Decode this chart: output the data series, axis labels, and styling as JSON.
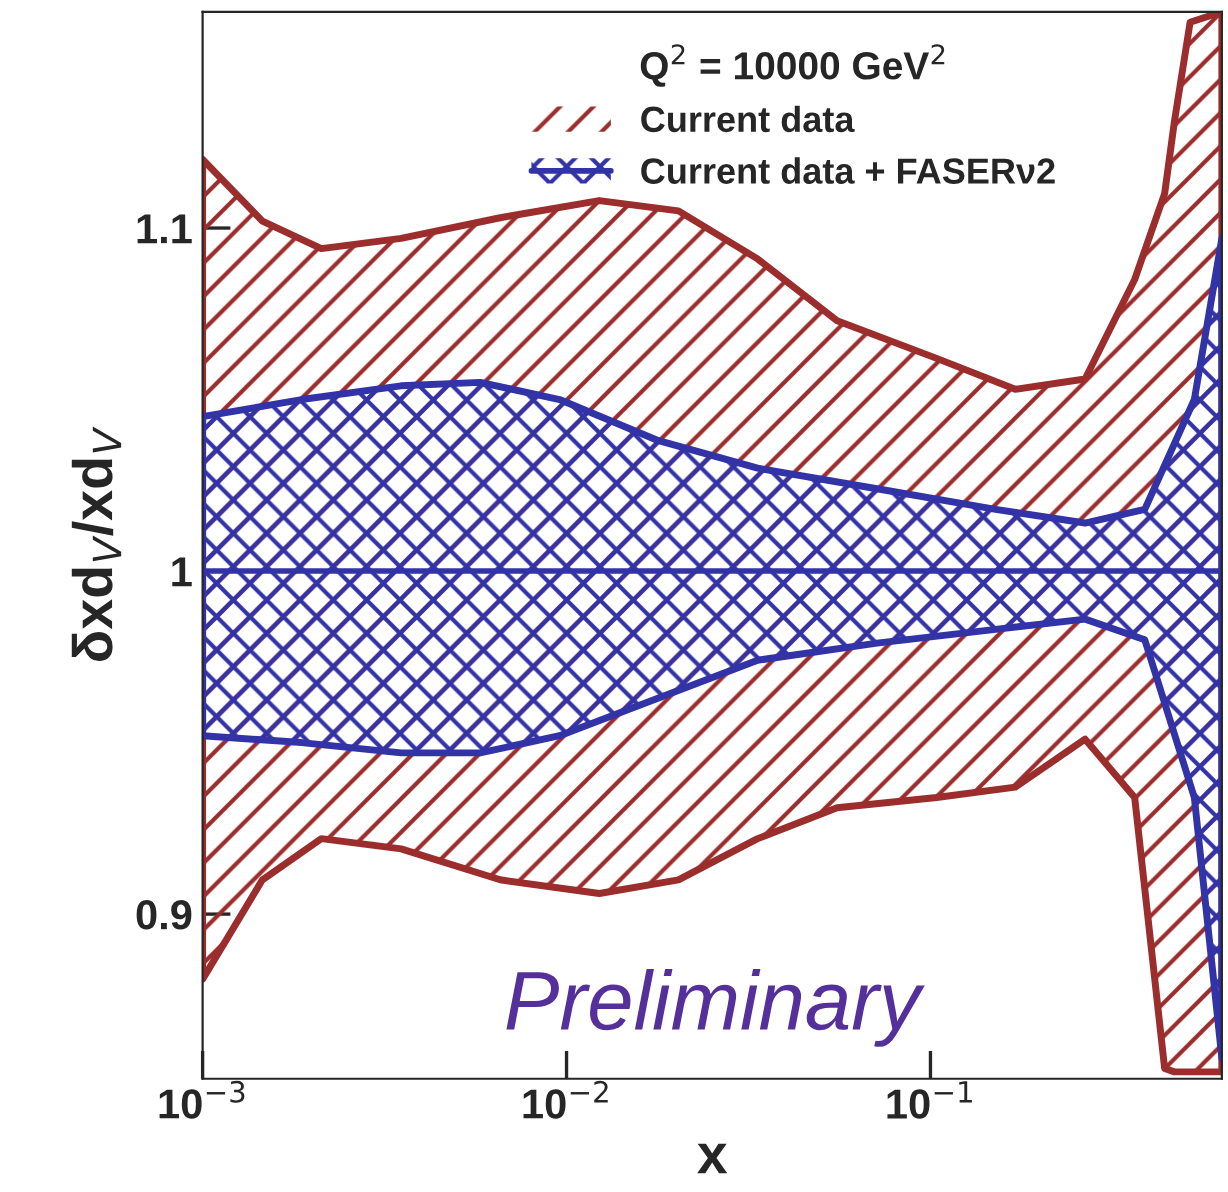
{
  "chart_data": {
    "type": "line",
    "xlabel": "x",
    "ylabel": "δxd$_{V}$/xd$_{V}$",
    "legend_title": "Q$^{2}$ = 10000 GeV$^{2}$",
    "legend": "top",
    "log": "x",
    "grid": false,
    "xlim": [
      0.001,
      0.632
    ],
    "xticks": [
      {
        "value": 0.001,
        "label": "10$^{−3}$"
      },
      {
        "value": 0.01,
        "label": "10$^{−2}$"
      },
      {
        "value": 0.1,
        "label": "10$^{−1}$"
      }
    ],
    "ylim": [
      0.852,
      1.163
    ],
    "yticks": [
      0.9,
      1,
      1.1
    ],
    "series": [
      {
        "name": "Current data",
        "color": "#9b2d2d",
        "x": [
          0.001,
          0.00146,
          0.00212,
          0.00351,
          0.00657,
          0.0123,
          0.0203,
          0.0335,
          0.0554,
          0.104,
          0.171,
          0.266,
          0.364,
          0.44,
          0.468,
          0.517,
          0.632
        ],
        "values": [
          null,
          null,
          null,
          null,
          null,
          null,
          null,
          null,
          null,
          null,
          null,
          null,
          null,
          null,
          null,
          null,
          null
        ],
        "upper": [
          1.12,
          1.102,
          1.094,
          1.097,
          1.103,
          1.108,
          1.105,
          1.091,
          1.073,
          1.062,
          1.053,
          1.056,
          1.085,
          1.11,
          1.131,
          1.16,
          1.163
        ],
        "lower": [
          0.881,
          0.91,
          0.922,
          0.919,
          0.91,
          0.906,
          0.91,
          0.922,
          0.931,
          0.934,
          0.937,
          0.951,
          0.934,
          0.855,
          0.854,
          0.854,
          0.854
        ]
      },
      {
        "name": "Current data + FASERν2",
        "color": "#3333a8",
        "x": [
          0.001,
          0.00187,
          0.00351,
          0.00579,
          0.00957,
          0.0179,
          0.0335,
          0.0713,
          0.151,
          0.266,
          0.388,
          0.531,
          0.632
        ],
        "values": [
          1,
          1,
          1,
          1,
          1,
          1,
          1,
          1,
          1,
          1,
          1,
          1,
          1
        ],
        "upper": [
          1.045,
          1.05,
          1.054,
          1.055,
          1.05,
          1.038,
          1.03,
          1.024,
          1.018,
          1.014,
          1.018,
          1.05,
          1.097
        ],
        "lower": [
          0.952,
          0.95,
          0.947,
          0.947,
          0.952,
          0.963,
          0.974,
          0.979,
          0.983,
          0.986,
          0.98,
          0.934,
          0.858
        ]
      }
    ],
    "annotations": [
      "Preliminary"
    ]
  }
}
